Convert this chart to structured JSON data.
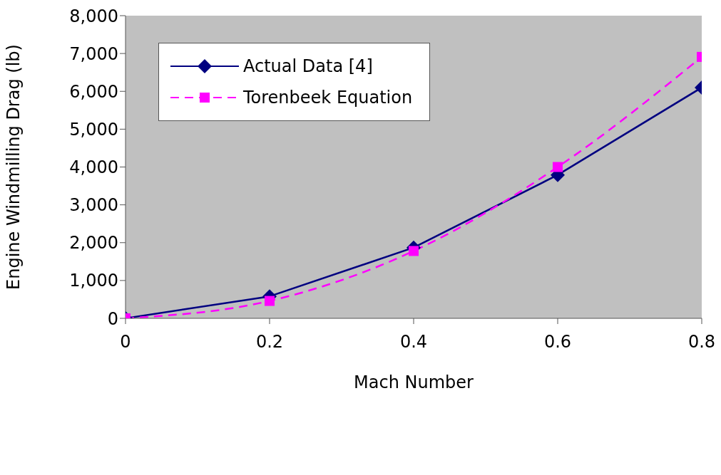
{
  "chart_data": {
    "type": "line",
    "xlabel": "Mach Number",
    "ylabel": "Engine Windmilling Drag  (lb)",
    "x": [
      0,
      0.2,
      0.4,
      0.6,
      0.8
    ],
    "series": [
      {
        "name": "Actual Data [4]",
        "color": "#000080",
        "values": [
          0,
          580,
          1870,
          3790,
          6100
        ],
        "marker": "diamond",
        "line_style": "solid"
      },
      {
        "name": "Torenbeek Equation",
        "color": "#ff00ff",
        "values": [
          0,
          460,
          1780,
          4000,
          6910
        ],
        "marker": "square",
        "line_style": "dashed"
      }
    ],
    "xlim": [
      0,
      0.8
    ],
    "xticks": [
      0,
      0.2,
      0.4,
      0.6,
      0.8
    ],
    "ylim": [
      0,
      8000
    ],
    "yticks": [
      0,
      {
        "value": 1000,
        "label": "1,000"
      },
      {
        "value": 2000,
        "label": "2,000"
      },
      {
        "value": 3000,
        "label": "3,000"
      },
      {
        "value": 4000,
        "label": "4,000"
      },
      {
        "value": 5000,
        "label": "5,000"
      },
      {
        "value": 6000,
        "label": "6,000"
      },
      {
        "value": 7000,
        "label": "7,000"
      },
      {
        "value": 8000,
        "label": "8,000"
      }
    ],
    "grid": false,
    "legend": "top left"
  }
}
